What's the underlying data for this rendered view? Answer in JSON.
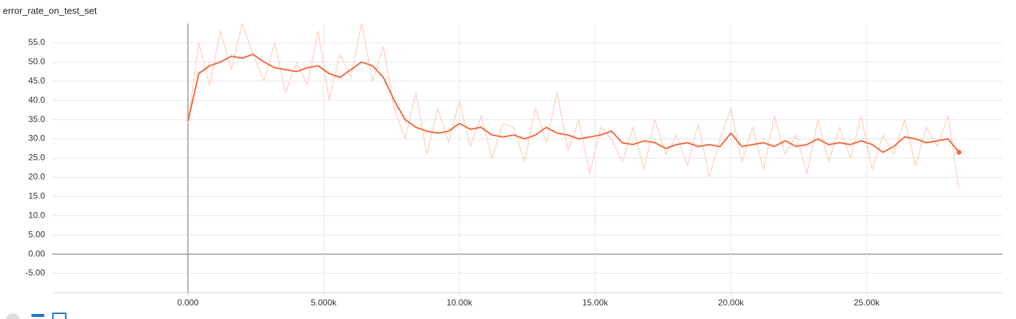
{
  "chart_data": {
    "type": "line",
    "title": "error_rate_on_test_set",
    "x": [
      0,
      400,
      800,
      1200,
      1600,
      2000,
      2400,
      2800,
      3200,
      3600,
      4000,
      4400,
      4800,
      5200,
      5600,
      6000,
      6400,
      6800,
      7200,
      7600,
      8000,
      8400,
      8800,
      9200,
      9600,
      10000,
      10400,
      10800,
      11200,
      11600,
      12000,
      12400,
      12800,
      13200,
      13600,
      14000,
      14400,
      14800,
      15200,
      15600,
      16000,
      16400,
      16800,
      17200,
      17600,
      18000,
      18400,
      18800,
      19200,
      19600,
      20000,
      20400,
      20800,
      21200,
      21600,
      22000,
      22400,
      22800,
      23200,
      23600,
      24000,
      24400,
      24800,
      25200,
      25600,
      26000,
      26400,
      26800,
      27200,
      27600,
      28000,
      28400
    ],
    "series": [
      {
        "color": "#fdd6c9",
        "values": [
          34,
          55,
          44,
          58,
          48,
          60,
          52,
          45,
          55,
          42,
          50,
          44,
          58,
          40,
          52,
          46,
          60,
          45,
          54,
          38,
          30,
          42,
          26,
          38,
          29,
          40,
          28,
          36,
          25,
          34,
          33,
          24,
          38,
          29,
          42,
          27,
          35,
          21,
          33,
          30,
          24,
          33,
          22,
          35,
          26,
          31,
          23,
          34,
          20,
          30,
          38,
          24,
          33,
          22,
          36,
          26,
          31,
          21,
          35,
          24,
          33,
          25,
          36,
          22,
          31,
          26,
          35,
          23,
          33,
          28,
          36,
          17
        ]
      },
      {
        "color": "#f4683c",
        "values": [
          34.5,
          47,
          49,
          50,
          51.5,
          51,
          52,
          50,
          48.5,
          48,
          47.5,
          48.5,
          49,
          47,
          46,
          48,
          50,
          49,
          46,
          40,
          35,
          33,
          32,
          31.5,
          32,
          34,
          32.5,
          33,
          31,
          30.5,
          31,
          30,
          31,
          33,
          31.5,
          31,
          30,
          30.5,
          31,
          32,
          29,
          28.5,
          29.5,
          29,
          27.5,
          28.5,
          29,
          28,
          28.5,
          28,
          31.5,
          28,
          28.5,
          29,
          28,
          29.5,
          28,
          28.5,
          30,
          28.5,
          29,
          28.5,
          29.5,
          28.5,
          26.5,
          28,
          30.5,
          30,
          29,
          29.5,
          30,
          26.5
        ]
      }
    ],
    "xlim": [
      -5000,
      30000
    ],
    "ylim": [
      -10,
      60
    ],
    "xticks": [
      {
        "value": 0,
        "label": "0.000"
      },
      {
        "value": 5000,
        "label": "5.000k"
      },
      {
        "value": 10000,
        "label": "10.00k"
      },
      {
        "value": 15000,
        "label": "15.00k"
      },
      {
        "value": 20000,
        "label": "20.00k"
      },
      {
        "value": 25000,
        "label": "25.00k"
      }
    ],
    "yticks": [
      {
        "value": 55,
        "label": "55.0"
      },
      {
        "value": 50,
        "label": "50.0"
      },
      {
        "value": 45,
        "label": "45.0"
      },
      {
        "value": 40,
        "label": "40.0"
      },
      {
        "value": 35,
        "label": "35.0"
      },
      {
        "value": 30,
        "label": "30.0"
      },
      {
        "value": 25,
        "label": "25.0"
      },
      {
        "value": 20,
        "label": "20.0"
      },
      {
        "value": 15,
        "label": "15.0"
      },
      {
        "value": 10,
        "label": "10.0"
      },
      {
        "value": 5,
        "label": "5.00"
      },
      {
        "value": 0,
        "label": "0.00"
      },
      {
        "value": -5,
        "label": "-5.00"
      }
    ],
    "grid": true
  }
}
